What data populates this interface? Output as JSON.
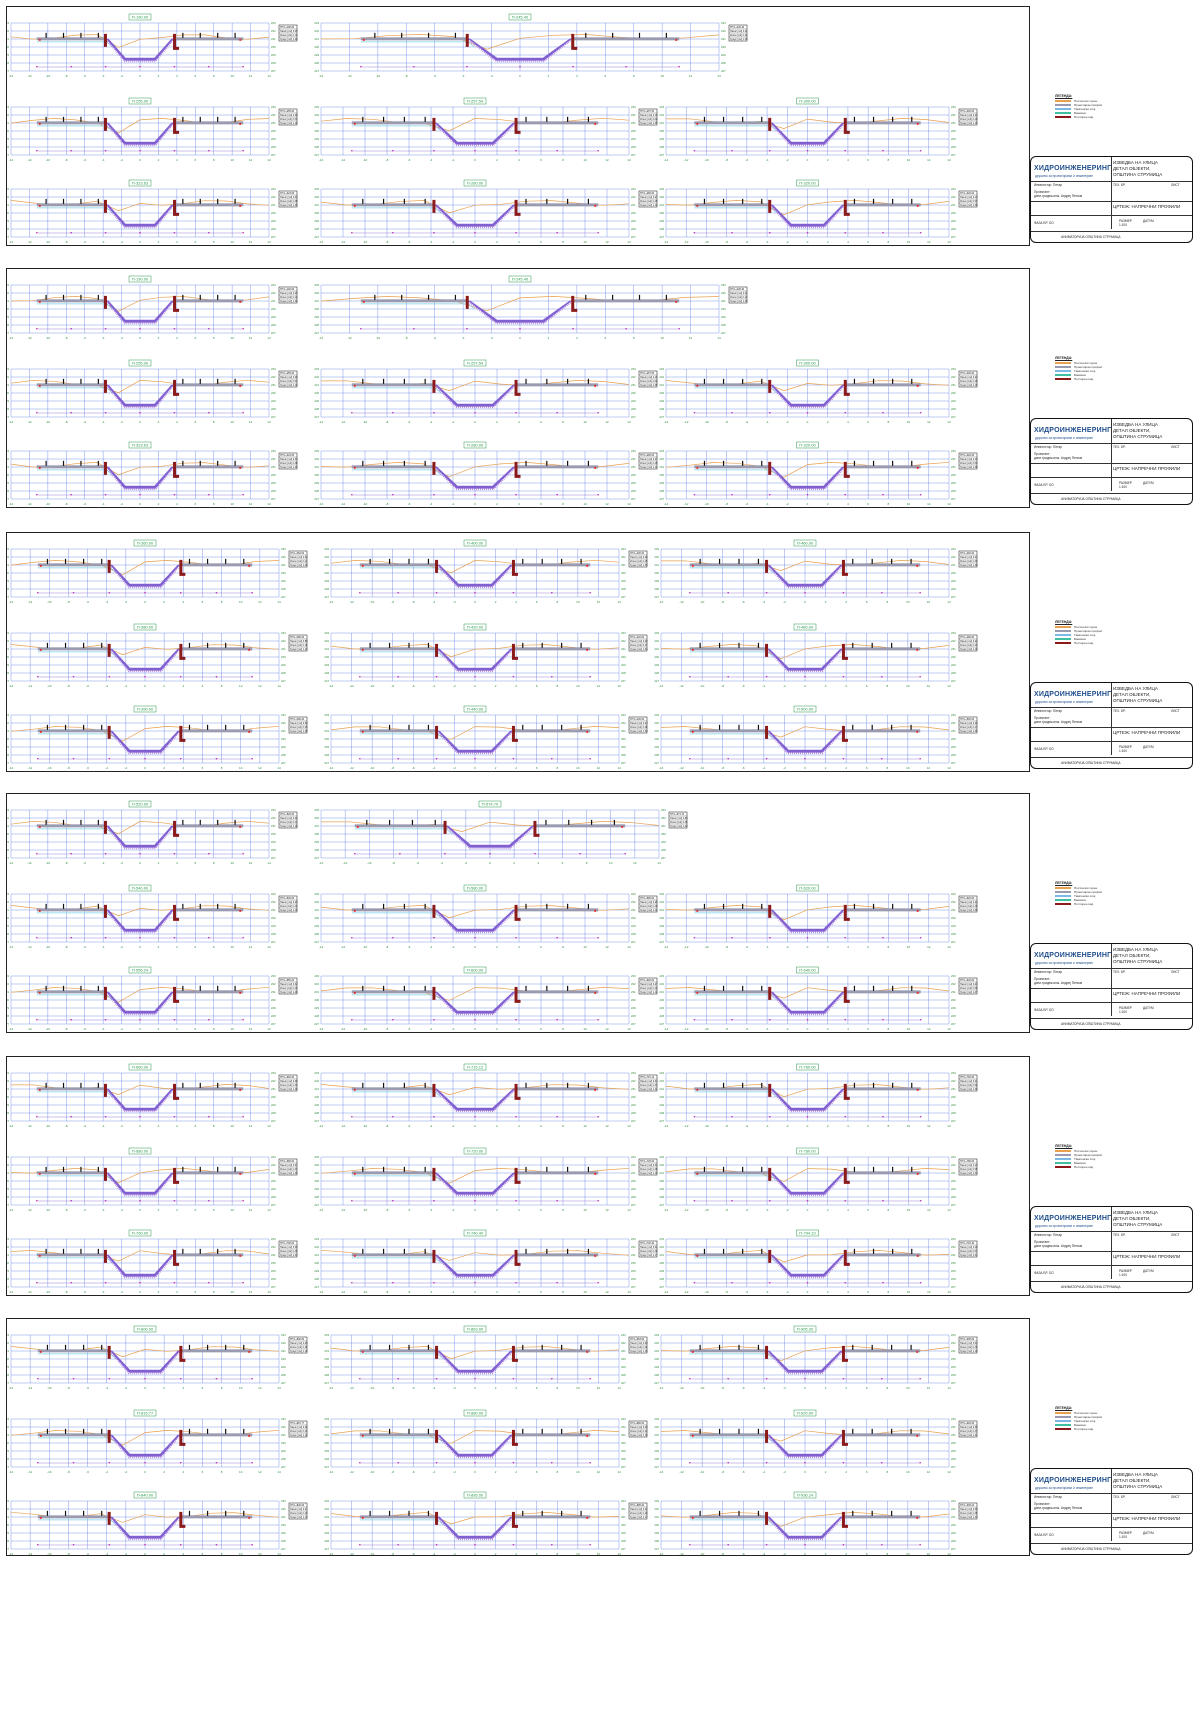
{
  "title_block": {
    "company": "ХИДРОИНЖЕНЕРИНГ",
    "company_sub": "друштво за проектирање и инженеринг",
    "object": "ИЗВЕДБА НА УЛИЦА",
    "object_l2": "ДЕТАЛ ОБЈЕКТИ,",
    "object_l3": "ОПШТИНА СТРУМИЦА",
    "field_tech": "ТЕХ. БР.",
    "field_sheet": "ЛИСТ",
    "investor": "Инвеститор: Петар",
    "designer": "Проектант:",
    "designer_name": "дипл.градеж.инж. Андреј Петков",
    "content_label": "ЦРТЕЖ: НАПРЕЧНИ ПРОФИЛИ",
    "scale_label": "РАЗМЕР",
    "scale": "1:100",
    "date_label": "ДАТУМ",
    "phase": "ФАЗА БР. ОО",
    "footer": "АНИМАТОРИЈА ОПШТИНА СТРУМИЦА"
  },
  "legend": {
    "title": "ЛЕГЕНДА:",
    "items": [
      {
        "label": "Постоечки терен",
        "color": "#e8a050"
      },
      {
        "label": "Проектиран профил",
        "color": "#9a9ab0"
      },
      {
        "label": "Тампонски слој",
        "color": "#7ab8e8"
      },
      {
        "label": "Банкина",
        "color": "#40c0a0"
      },
      {
        "label": "Потпорен ѕид",
        "color": "#8b1a1a"
      }
    ]
  },
  "sheets": [
    {
      "sheet": 1,
      "profiles": [
        {
          "label": "П-190.00",
          "info": [
            "ПП 1+190.00",
            "Насип [m2] 0.45",
            "Ископ [m2] 0.12",
            "Хумус [m2] 1.20"
          ]
        },
        {
          "label": "П-245.40",
          "info": [
            "ПП 1+245.40",
            "Насип [m2] 0.31",
            "Ископ [m2] 0.44",
            "Хумус [m2] 1.30"
          ]
        },
        {
          "label": "П-255.00",
          "info": [
            "ПП 1+255.00",
            "Насип [m2] 0.28",
            "Ископ [m2] 0.51",
            "Хумус [m2] 1.10"
          ]
        },
        {
          "label": "П-257.54",
          "info": [
            "ПП 1+257.54",
            "Насип [m2] 0.18",
            "Ископ [m2] 0.62",
            "Хумус [m2] 1.05"
          ]
        },
        {
          "label": "П-300.00",
          "info": [
            "ПП 1+300.00",
            "Насип [m2] 0.22",
            "Ископ [m2] 0.40",
            "Хумус [m2] 1.15"
          ]
        },
        {
          "label": "П-323.63",
          "info": [
            "ПП 1+323.63",
            "Насип [m2] 0.33",
            "Ископ [m2] 0.38",
            "Хумус [m2] 1.25"
          ]
        },
        {
          "label": "П-280.00",
          "info": [
            "ПП 1+280.00",
            "Насип [m2] 0.27",
            "Ископ [m2] 0.45",
            "Хумус [m2] 1.12"
          ]
        },
        {
          "label": "П-320.00",
          "info": [
            "ПП 1+320.00",
            "Насип [m2] 0.19",
            "Ископ [m2] 0.53",
            "Хумус [m2] 1.08"
          ]
        }
      ]
    },
    {
      "sheet": 2,
      "profiles": [
        {
          "label": "П-190.00",
          "info": [
            "ПП 1+190.00",
            "Насип [m2] 0.45",
            "Ископ [m2] 0.12",
            "Хумус [m2] 1.20"
          ]
        },
        {
          "label": "П-245.40",
          "info": [
            "ПП 1+245.40",
            "Насип [m2] 0.31",
            "Ископ [m2] 0.44",
            "Хумус [m2] 1.30"
          ]
        },
        {
          "label": "П-255.00",
          "info": [
            "ПП 1+255.00",
            "Насип [m2] 0.28",
            "Ископ [m2] 0.51",
            "Хумус [m2] 1.10"
          ]
        },
        {
          "label": "П-257.54",
          "info": [
            "ПП 1+257.54",
            "Насип [m2] 0.18",
            "Ископ [m2] 0.62",
            "Хумус [m2] 1.05"
          ]
        },
        {
          "label": "П-300.00",
          "info": [
            "ПП 1+300.00",
            "Насип [m2] 0.22",
            "Ископ [m2] 0.40",
            "Хумус [m2] 1.15"
          ]
        },
        {
          "label": "П-323.63",
          "info": [
            "ПП 1+323.63",
            "Насип [m2] 0.33",
            "Ископ [m2] 0.38",
            "Хумус [m2] 1.25"
          ]
        },
        {
          "label": "П-280.00",
          "info": [
            "ПП 1+280.00",
            "Насип [m2] 0.27",
            "Ископ [m2] 0.45",
            "Хумус [m2] 1.12"
          ]
        },
        {
          "label": "П-320.00",
          "info": [
            "ПП 1+320.00",
            "Насип [m2] 0.19",
            "Ископ [m2] 0.53",
            "Хумус [m2] 1.08"
          ]
        }
      ]
    },
    {
      "sheet": 3,
      "profiles": [
        {
          "label": "П-360.00",
          "info": [
            "ПП 1+360.00",
            "Насип [m2] 0.52",
            "Ископ [m2] 0.21",
            "Хумус [m2] 1.40"
          ]
        },
        {
          "label": "П-400.00",
          "info": [
            "ПП 1+400.00",
            "Насип [m2] 0.48",
            "Ископ [m2] 0.25",
            "Хумус [m2] 1.35"
          ]
        },
        {
          "label": "П-460.00",
          "info": [
            "ПП 1+460.00",
            "Насип [m2] 0.41",
            "Ископ [m2] 0.30",
            "Хумус [m2] 1.28"
          ]
        },
        {
          "label": "П-380.00",
          "info": [
            "ПП 1+380.00",
            "Насип [m2] 0.55",
            "Ископ [m2] 0.19",
            "Хумус [m2] 1.42"
          ]
        },
        {
          "label": "П-420.00",
          "info": [
            "ПП 1+420.00",
            "Насип [m2] 0.46",
            "Ископ [m2] 0.27",
            "Хумус [m2] 1.33"
          ]
        },
        {
          "label": "П-480.00",
          "info": [
            "ПП 1+480.00",
            "Насип [m2] 0.22",
            "Ископ [m2] 0.44",
            "Хумус [m2] 1.10"
          ]
        },
        {
          "label": "П-390.00",
          "info": [
            "ПП 1+390.00",
            "Насип [m2] 0.50",
            "Ископ [m2] 0.20",
            "Хумус [m2] 1.38"
          ]
        },
        {
          "label": "П-440.00",
          "info": [
            "ПП 1+440.00",
            "Насип [m2] 0.44",
            "Ископ [m2] 0.28",
            "Хумус [m2] 1.30"
          ]
        },
        {
          "label": "П-500.00",
          "info": [
            "ПП 1+500.00",
            "Насип [m2] 0.20",
            "Ископ [m2] 0.47",
            "Хумус [m2] 1.05"
          ]
        }
      ]
    },
    {
      "sheet": 4,
      "profiles": [
        {
          "label": "П-520.00",
          "info": [
            "ПП 1+520.00",
            "Насип [m2] 0.30",
            "Ископ [m2] 0.41",
            "Хумус [m2] 1.18"
          ]
        },
        {
          "label": "П-574.70",
          "info": [
            "ПП 1+574.70",
            "Насип [m2] 0.35",
            "Ископ [m2] 0.39",
            "Хумус [m2] 1.22"
          ]
        },
        {
          "label": "П-540.00",
          "info": [
            "ПП 1+540.00",
            "Насип [m2] 0.29",
            "Ископ [m2] 0.43",
            "Хумус [m2] 1.16"
          ]
        },
        {
          "label": "П-580.00",
          "info": [
            "ПП 1+580.00",
            "Насип [m2] 0.26",
            "Ископ [m2] 0.46",
            "Хумус [m2] 1.12"
          ]
        },
        {
          "label": "П-620.00",
          "info": [
            "ПП 1+620.00",
            "Насип [m2] 0.24",
            "Ископ [m2] 0.49",
            "Хумус [m2] 1.09"
          ]
        },
        {
          "label": "П-555.24",
          "info": [
            "ПП 1+555.24",
            "Насип [m2] 0.32",
            "Ископ [m2] 0.40",
            "Хумус [m2] 1.20"
          ]
        },
        {
          "label": "П-600.00",
          "info": [
            "ПП 1+600.00",
            "Насип [m2] 0.27",
            "Ископ [m2] 0.44",
            "Хумус [m2] 1.14"
          ]
        },
        {
          "label": "П-640.00",
          "info": [
            "ПП 1+640.00",
            "Насип [m2] 0.23",
            "Ископ [m2] 0.50",
            "Хумус [m2] 1.07"
          ]
        }
      ]
    },
    {
      "sheet": 5,
      "profiles": [
        {
          "label": "П-660.00",
          "info": [
            "ПП 1+660.00",
            "Насип [m2] 0.38",
            "Ископ [m2] 0.33",
            "Хумус [m2] 1.26"
          ]
        },
        {
          "label": "П-715.12",
          "info": [
            "ПП 1+715.12",
            "Насип [m2] 0.34",
            "Ископ [m2] 0.37",
            "Хумус [m2] 1.21"
          ]
        },
        {
          "label": "П-760.00",
          "info": [
            "ПП 1+760.00",
            "Насип [m2] 0.21",
            "Ископ [m2] 0.52",
            "Хумус [m2] 1.06"
          ]
        },
        {
          "label": "П-680.00",
          "info": [
            "ПП 1+680.00",
            "Насип [m2] 0.37",
            "Ископ [m2] 0.34",
            "Хумус [m2] 1.25"
          ]
        },
        {
          "label": "П-720.00",
          "info": [
            "ПП 1+720.00",
            "Насип [m2] 0.33",
            "Ископ [m2] 0.38",
            "Хумус [m2] 1.19"
          ]
        },
        {
          "label": "П-780.00",
          "info": [
            "ПП 1+780.00",
            "Насип [m2] 0.19",
            "Ископ [m2] 0.55",
            "Хумус [m2] 1.03"
          ]
        },
        {
          "label": "П-700.00",
          "info": [
            "ПП 1+700.00",
            "Насип [m2] 0.36",
            "Ископ [m2] 0.35",
            "Хумус [m2] 1.23"
          ]
        },
        {
          "label": "П-740.40",
          "info": [
            "ПП 1+740.40",
            "Насип [m2] 0.31",
            "Ископ [m2] 0.40",
            "Хумус [m2] 1.17"
          ]
        },
        {
          "label": "П-794.10",
          "info": [
            "ПП 1+794.10",
            "Насип [m2] 0.18",
            "Ископ [m2] 0.57",
            "Хумус [m2] 1.01"
          ]
        }
      ]
    },
    {
      "sheet": 6,
      "profiles": [
        {
          "label": "П-800.00",
          "info": [
            "ПП 1+800.00",
            "Насип [m2] 0.25",
            "Ископ [m2] 0.45",
            "Хумус [m2] 1.10"
          ]
        },
        {
          "label": "П-863.00",
          "info": [
            "ПП 1+863.00",
            "Насип [m2] 0.29",
            "Ископ [m2] 0.42",
            "Хумус [m2] 1.15"
          ]
        },
        {
          "label": "П-905.00",
          "info": [
            "ПП 1+905.00",
            "Насип [m2] 0.33",
            "Ископ [m2] 0.39",
            "Хумус [m2] 1.19"
          ]
        },
        {
          "label": "П-815.77",
          "info": [
            "ПП 1+815.77",
            "Насип [m2] 0.26",
            "Ископ [m2] 0.44",
            "Хумус [m2] 1.12"
          ]
        },
        {
          "label": "П-880.00",
          "info": [
            "ПП 1+880.00",
            "Насип [m2] 0.30",
            "Ископ [m2] 0.41",
            "Хумус [m2] 1.16"
          ]
        },
        {
          "label": "П-920.00",
          "info": [
            "ПП 1+920.00",
            "Насип [m2] 0.35",
            "Ископ [m2] 0.37",
            "Хумус [m2] 1.21"
          ]
        },
        {
          "label": "П-840.00",
          "info": [
            "ПП 1+840.00",
            "Насип [m2] 0.27",
            "Ископ [m2] 0.43",
            "Хумус [m2] 1.13"
          ]
        },
        {
          "label": "П-895.00",
          "info": [
            "ПП 1+895.00",
            "Насип [m2] 0.31",
            "Ископ [m2] 0.40",
            "Хумус [m2] 1.17"
          ]
        },
        {
          "label": "П-936.24",
          "info": [
            "ПП 1+936.24",
            "Насип [m2] 0.36",
            "Ископ [m2] 0.36",
            "Хумус [m2] 1.23"
          ]
        }
      ]
    }
  ],
  "tick_labels": [
    "-14",
    "-12",
    "-10",
    "-8",
    "-6",
    "-4",
    "-2",
    "0",
    "2",
    "4",
    "6",
    "8",
    "10",
    "12",
    "14"
  ],
  "elev_labels": [
    "233",
    "232",
    "231",
    "230",
    "229",
    "228",
    "227"
  ],
  "colors": {
    "grid": "#4a6ee0",
    "terrain": "#e8a050",
    "design": "#9a9ab0",
    "fill": "#8060d0",
    "cyan": "#7ad0e8",
    "green": "#40c070",
    "wall": "#8b1a1a",
    "label_green": "#2a9a4a",
    "magenta": "#c040c0"
  }
}
